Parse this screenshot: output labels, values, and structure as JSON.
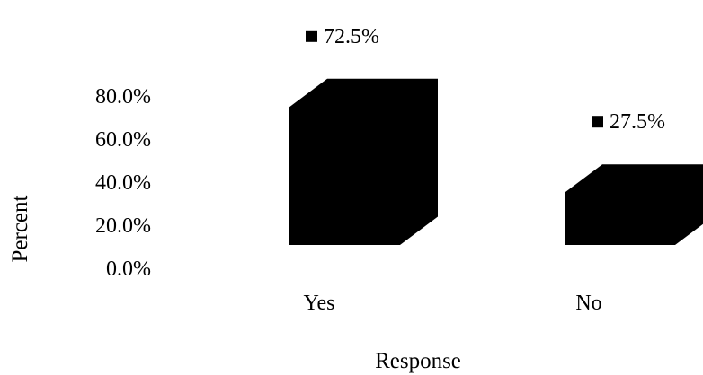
{
  "chart_data": {
    "type": "bar",
    "style": "3d",
    "categories": [
      "Yes",
      "No"
    ],
    "series": [
      {
        "values": [
          72.5,
          27.5
        ]
      }
    ],
    "data_labels": [
      "72.5%",
      "27.5%"
    ],
    "xlabel": "Response",
    "ylabel": "Percent",
    "yticks": [
      "0.0%",
      "20.0%",
      "40.0%",
      "60.0%",
      "80.0%"
    ],
    "ylim": [
      0,
      80
    ],
    "grid": false,
    "legend": "none",
    "bar_color": "#000000"
  }
}
